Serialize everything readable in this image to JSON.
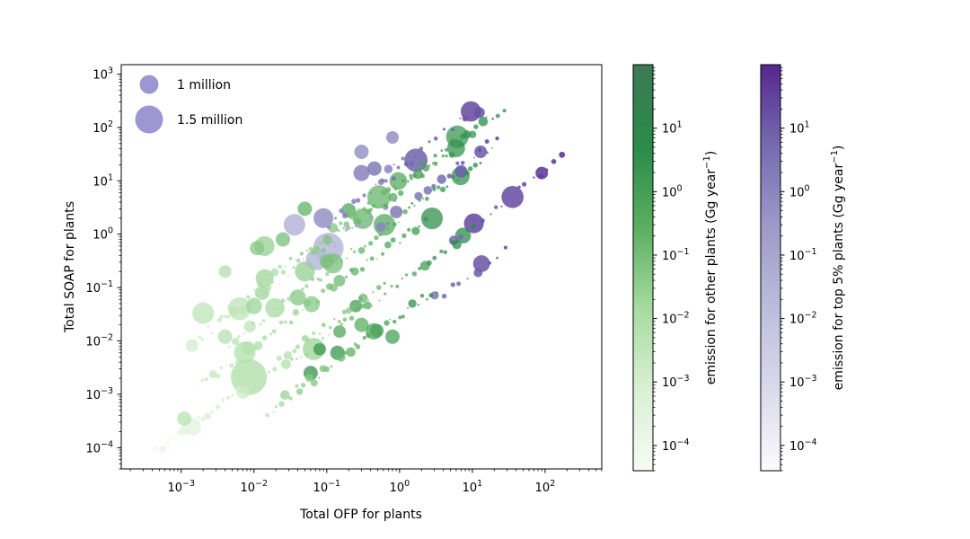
{
  "chart_data": {
    "type": "scatter",
    "xlabel": "Total OFP for plants",
    "ylabel": "Total SOAP for plants",
    "xscale": "log",
    "yscale": "log",
    "xlim": [
      0.00015,
      600
    ],
    "ylim": [
      4e-05,
      1500
    ],
    "x_ticks": [
      {
        "value": 0.001,
        "base": "10",
        "exp": "−3"
      },
      {
        "value": 0.01,
        "base": "10",
        "exp": "−2"
      },
      {
        "value": 0.1,
        "base": "10",
        "exp": "−1"
      },
      {
        "value": 1,
        "base": "10",
        "exp": "0"
      },
      {
        "value": 10,
        "base": "10",
        "exp": "1"
      },
      {
        "value": 100,
        "base": "10",
        "exp": "2"
      }
    ],
    "y_ticks": [
      {
        "value": 0.0001,
        "base": "10",
        "exp": "−4"
      },
      {
        "value": 0.001,
        "base": "10",
        "exp": "−3"
      },
      {
        "value": 0.01,
        "base": "10",
        "exp": "−2"
      },
      {
        "value": 0.1,
        "base": "10",
        "exp": "−1"
      },
      {
        "value": 1,
        "base": "10",
        "exp": "0"
      },
      {
        "value": 10,
        "base": "10",
        "exp": "1"
      },
      {
        "value": 100,
        "base": "10",
        "exp": "2"
      },
      {
        "value": 1000,
        "base": "10",
        "exp": "3"
      }
    ],
    "size_legend": [
      {
        "label": "1 million",
        "value": 1000000
      },
      {
        "label": "1.5 million",
        "value": 1500000
      }
    ],
    "size_legend_color": "#8b85c9",
    "colorbars": [
      {
        "name": "other",
        "label_text": "emission for other plants (Gg year",
        "label_sup": "−1",
        "label_tail": ")",
        "stops": [
          "#f6fbf3",
          "#d9f0d3",
          "#a6dba0",
          "#5aae61",
          "#2a8b4a",
          "#3c7a54"
        ],
        "ticks": [
          {
            "value": 0.0001,
            "base": "10",
            "exp": "−4"
          },
          {
            "value": 0.001,
            "base": "10",
            "exp": "−3"
          },
          {
            "value": 0.01,
            "base": "10",
            "exp": "−2"
          },
          {
            "value": 0.1,
            "base": "10",
            "exp": "−1"
          },
          {
            "value": 1,
            "base": "10",
            "exp": "0"
          },
          {
            "value": 10,
            "base": "10",
            "exp": "1"
          }
        ]
      },
      {
        "name": "top5",
        "label_text": "emission for top 5% plants (Gg year",
        "label_sup": "−1",
        "label_tail": ")",
        "stops": [
          "#fcfbfd",
          "#dadaeb",
          "#bcbddc",
          "#9e9ac8",
          "#756bb1",
          "#54278f"
        ],
        "ticks": [
          {
            "value": 0.0001,
            "base": "10",
            "exp": "−4"
          },
          {
            "value": 0.001,
            "base": "10",
            "exp": "−3"
          },
          {
            "value": 0.01,
            "base": "10",
            "exp": "−2"
          },
          {
            "value": 0.1,
            "base": "10",
            "exp": "−1"
          },
          {
            "value": 1,
            "base": "10",
            "exp": "0"
          },
          {
            "value": 10,
            "base": "10",
            "exp": "1"
          }
        ]
      }
    ],
    "colorbar_range": [
      4e-05,
      100
    ],
    "bands": [
      {
        "x0": 0.00045,
        "x1": 0.7,
        "ratio": 0.18,
        "n": 46,
        "group": "other",
        "cmin": 0.0001,
        "cmax": 0.3
      },
      {
        "x0": 0.0014,
        "x1": 8,
        "ratio": 6.5,
        "n": 55,
        "group": "other",
        "cmin": 0.001,
        "cmax": 3
      },
      {
        "x0": 0.0035,
        "x1": 30,
        "ratio": 9.0,
        "n": 55,
        "group": "other",
        "cmin": 0.003,
        "cmax": 8
      },
      {
        "x0": 0.0045,
        "x1": 20,
        "ratio": 2.0,
        "n": 55,
        "group": "other",
        "cmin": 0.003,
        "cmax": 8
      },
      {
        "x0": 0.0015,
        "x1": 3,
        "ratio": 0.8,
        "n": 45,
        "group": "other",
        "cmin": 0.001,
        "cmax": 3
      },
      {
        "x0": 0.015,
        "x1": 3.5,
        "ratio": 0.03,
        "n": 38,
        "group": "other",
        "cmin": 0.01,
        "cmax": 10
      },
      {
        "x0": 0.025,
        "x1": 12,
        "ratio": 0.12,
        "n": 35,
        "group": "other",
        "cmin": 0.01,
        "cmax": 10
      },
      {
        "x0": 0.1,
        "x1": 2,
        "ratio": 15,
        "n": 16,
        "group": "top5",
        "cmin": 0.5,
        "cmax": 8
      },
      {
        "x0": 0.5,
        "x1": 12,
        "ratio": 20,
        "n": 14,
        "group": "top5",
        "cmin": 1,
        "cmax": 30
      },
      {
        "x0": 0.5,
        "x1": 25,
        "ratio": 2.8,
        "n": 16,
        "group": "top5",
        "cmin": 1,
        "cmax": 30
      },
      {
        "x0": 5,
        "x1": 200,
        "ratio": 0.15,
        "n": 16,
        "group": "top5",
        "cmin": 5,
        "cmax": 80
      },
      {
        "x0": 3,
        "x1": 35,
        "ratio": 0.02,
        "n": 10,
        "group": "top5",
        "cmin": 3,
        "cmax": 30
      },
      {
        "x0": 0.05,
        "x1": 1,
        "ratio": 5.5,
        "n": 10,
        "group": "top5",
        "cmin": 0.01,
        "cmax": 1
      }
    ],
    "highlights": [
      {
        "x": 0.0085,
        "y": 0.0021,
        "r": 20,
        "group": "other",
        "c": 0.01
      },
      {
        "x": 0.105,
        "y": 0.55,
        "r": 17,
        "group": "top5",
        "c": 0.02
      },
      {
        "x": 0.036,
        "y": 1.5,
        "r": 12,
        "group": "top5",
        "c": 0.03
      },
      {
        "x": 0.09,
        "y": 2.0,
        "r": 11,
        "group": "top5",
        "c": 0.5
      },
      {
        "x": 0.0011,
        "y": 0.00035,
        "r": 8,
        "group": "other",
        "c": 0.005
      },
      {
        "x": 0.002,
        "y": 0.033,
        "r": 12,
        "group": "other",
        "c": 0.004
      },
      {
        "x": 0.014,
        "y": 0.6,
        "r": 11,
        "group": "other",
        "c": 0.03
      },
      {
        "x": 0.014,
        "y": 0.15,
        "r": 10,
        "group": "other",
        "c": 0.02
      },
      {
        "x": 0.01,
        "y": 0.045,
        "r": 9,
        "group": "other",
        "c": 0.02
      },
      {
        "x": 0.05,
        "y": 0.2,
        "r": 11,
        "group": "other",
        "c": 0.03
      },
      {
        "x": 0.04,
        "y": 0.065,
        "r": 9,
        "group": "other",
        "c": 0.05
      },
      {
        "x": 0.013,
        "y": 0.08,
        "r": 8,
        "group": "other",
        "c": 0.02
      },
      {
        "x": 0.1,
        "y": 0.31,
        "r": 8,
        "group": "other",
        "c": 0.08
      },
      {
        "x": 0.004,
        "y": 0.012,
        "r": 8,
        "group": "other",
        "c": 0.006
      },
      {
        "x": 0.011,
        "y": 0.55,
        "r": 8,
        "group": "other",
        "c": 0.05
      },
      {
        "x": 0.025,
        "y": 0.8,
        "r": 8,
        "group": "other",
        "c": 0.1
      },
      {
        "x": 0.004,
        "y": 0.2,
        "r": 7,
        "group": "other",
        "c": 0.008
      },
      {
        "x": 10.5,
        "y": 1.6,
        "r": 11,
        "group": "top5",
        "c": 25
      },
      {
        "x": 0.8,
        "y": 65,
        "r": 7,
        "group": "top5",
        "c": 0.5
      },
      {
        "x": 0.3,
        "y": 35,
        "r": 8,
        "group": "top5",
        "c": 0.4
      },
      {
        "x": 0.3,
        "y": 14,
        "r": 9,
        "group": "top5",
        "c": 1.2
      },
      {
        "x": 0.45,
        "y": 17,
        "r": 8,
        "group": "top5",
        "c": 2
      },
      {
        "x": 0.9,
        "y": 2.6,
        "r": 7,
        "group": "top5",
        "c": 2
      },
      {
        "x": 90,
        "y": 14,
        "r": 7,
        "group": "top5",
        "c": 60
      },
      {
        "x": 12.5,
        "y": 190,
        "r": 6,
        "group": "top5",
        "c": 15
      },
      {
        "x": 13,
        "y": 35,
        "r": 7,
        "group": "top5",
        "c": 12
      },
      {
        "x": 7,
        "y": 15,
        "r": 7,
        "group": "top5",
        "c": 10
      },
      {
        "x": 12,
        "y": 0.19,
        "r": 5,
        "group": "top5",
        "c": 10
      },
      {
        "x": 0.08,
        "y": 0.007,
        "r": 7,
        "group": "other",
        "c": 2
      },
      {
        "x": 0.14,
        "y": 0.006,
        "r": 8,
        "group": "other",
        "c": 2.5
      },
      {
        "x": 0.06,
        "y": 0.0025,
        "r": 8,
        "group": "other",
        "c": 3
      },
      {
        "x": 0.3,
        "y": 0.02,
        "r": 8,
        "group": "other",
        "c": 0.3
      },
      {
        "x": 0.25,
        "y": 0.045,
        "r": 7,
        "group": "other",
        "c": 1
      },
      {
        "x": 0.8,
        "y": 0.012,
        "r": 8,
        "group": "other",
        "c": 0.9
      },
      {
        "x": 0.15,
        "y": 0.015,
        "r": 7,
        "group": "other",
        "c": 0.5
      },
      {
        "x": 0.2,
        "y": 2.8,
        "r": 8,
        "group": "other",
        "c": 0.5
      },
      {
        "x": 0.05,
        "y": 3.0,
        "r": 8,
        "group": "other",
        "c": 0.2
      }
    ]
  }
}
